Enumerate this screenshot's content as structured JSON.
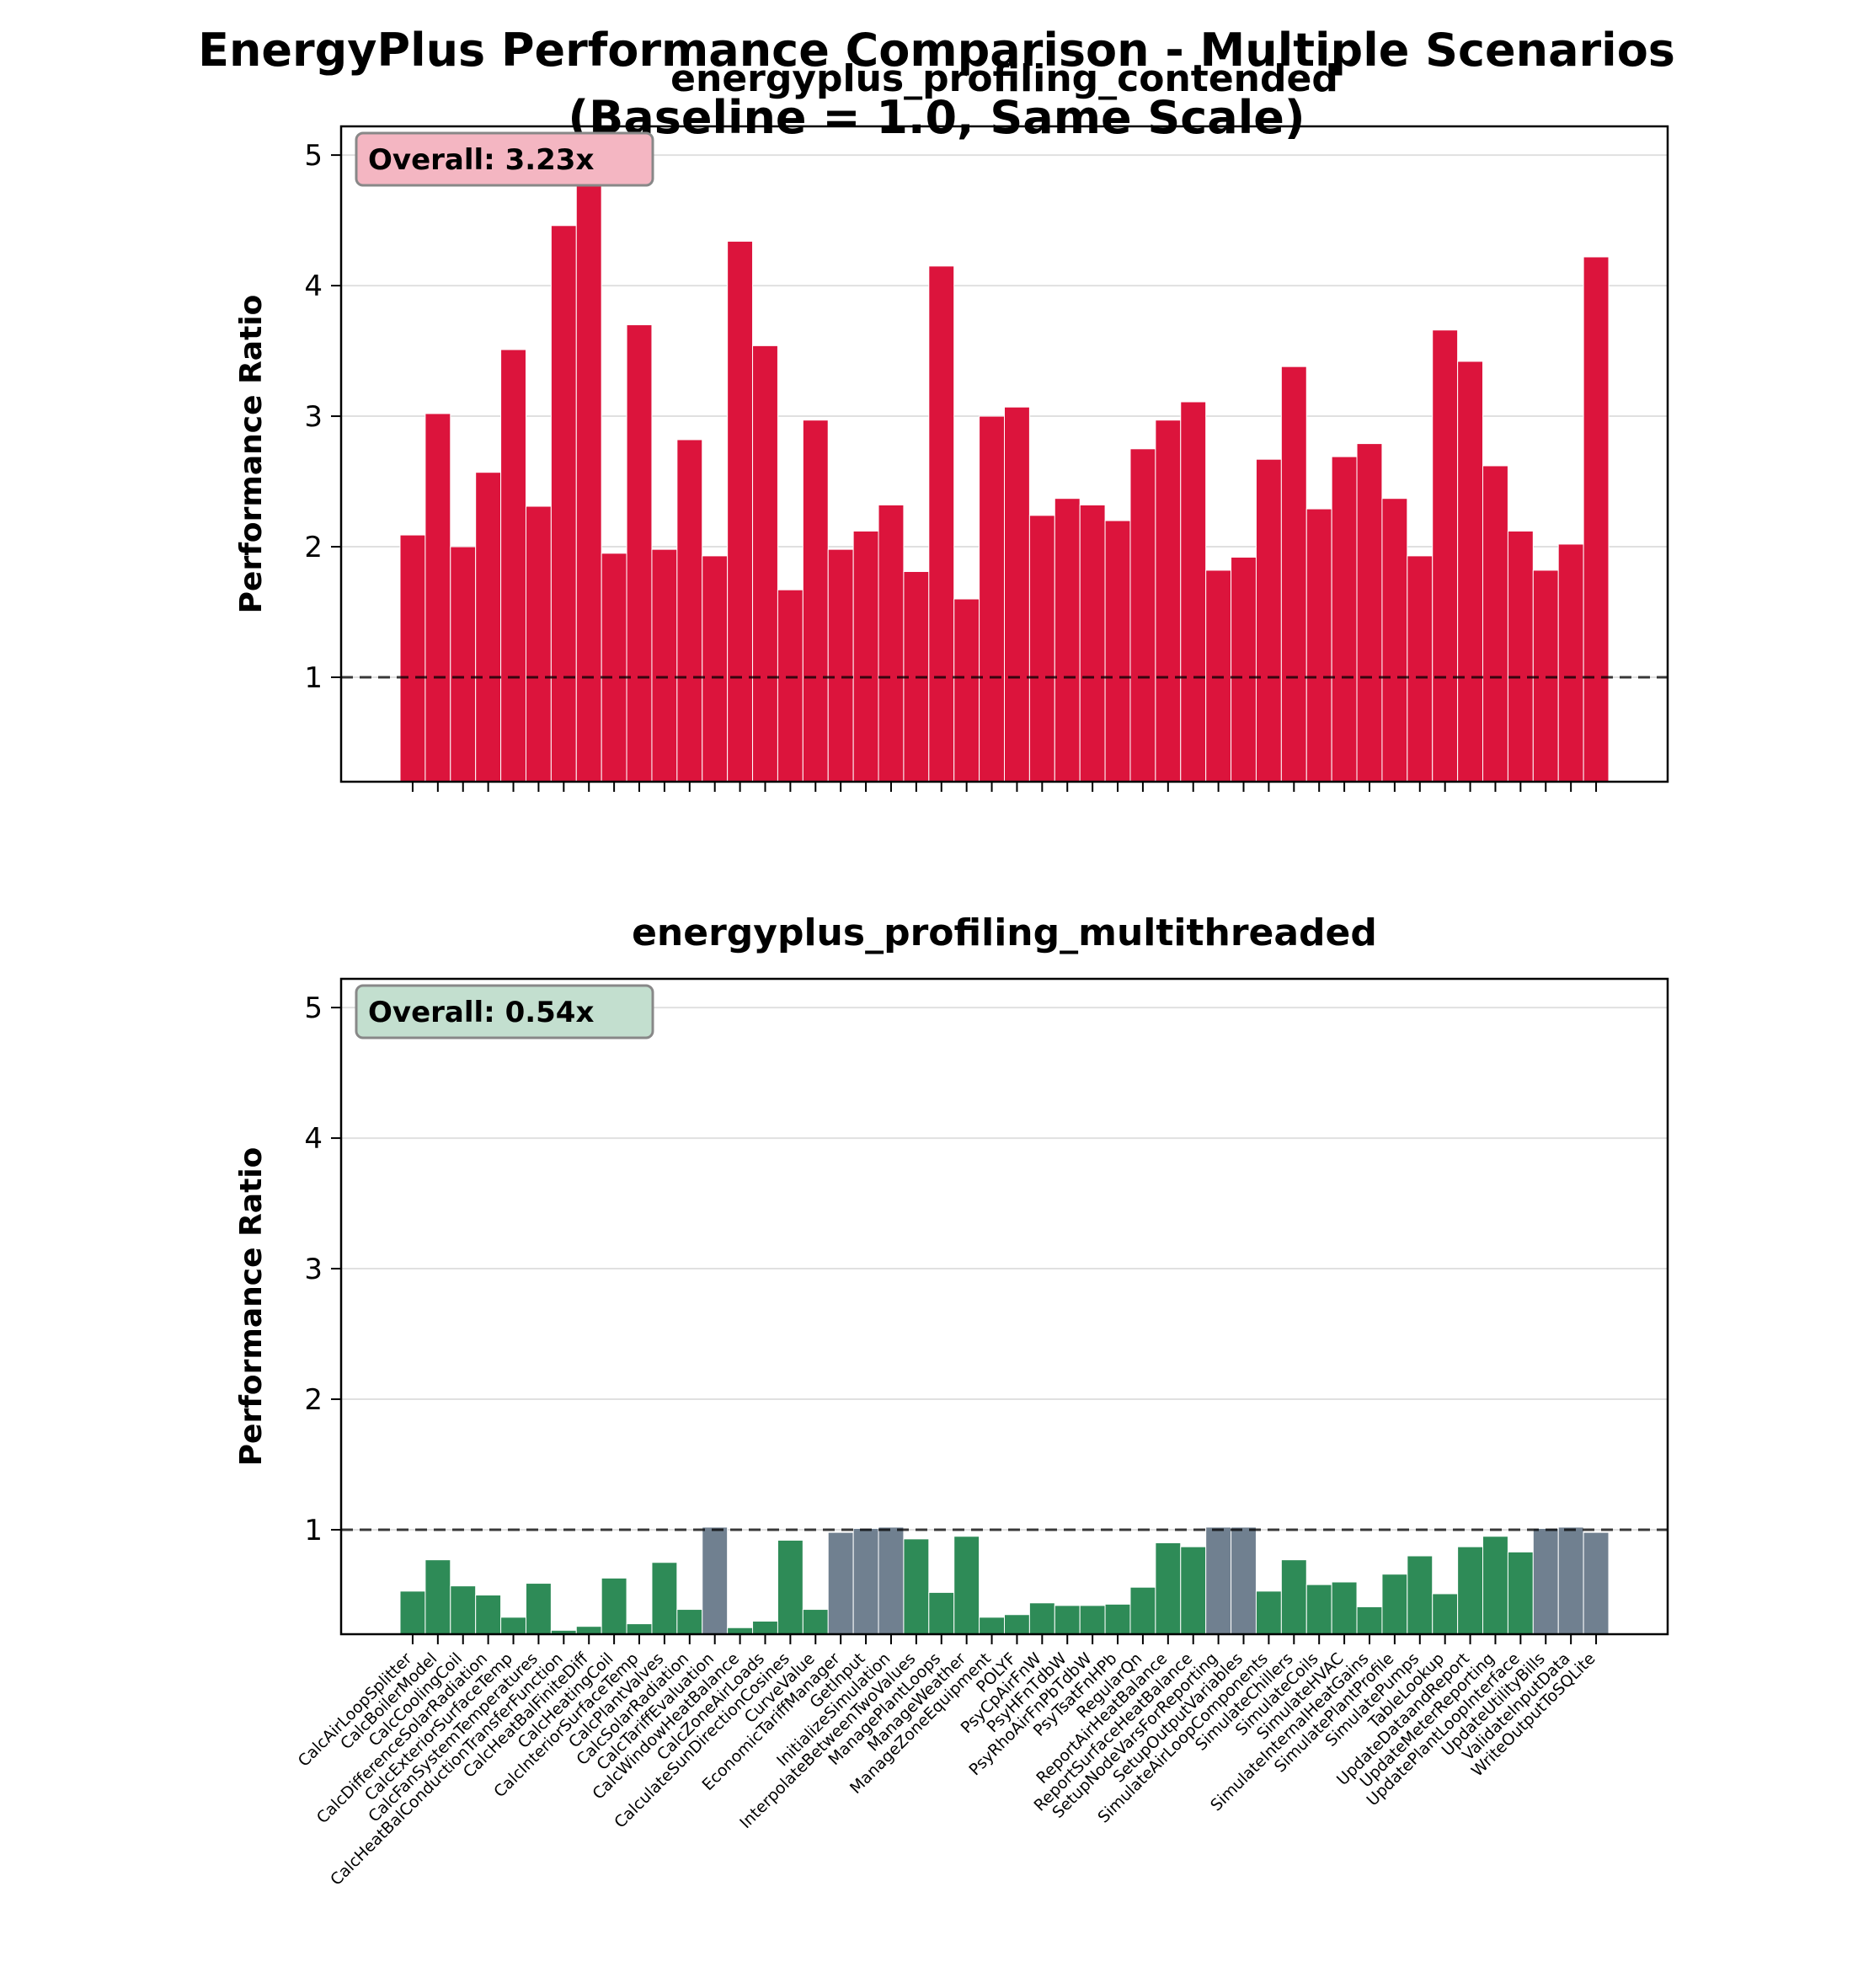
{
  "figure": {
    "title_line1": "EnergyPlus Performance Comparison - Multiple Scenarios",
    "title_line2": "(Baseline = 1.0, Same Scale)"
  },
  "colors": {
    "slower": "#dc143c",
    "faster": "#2e8b57",
    "neutral": "#708090",
    "badge_slower": "#f4b6c2",
    "badge_faster": "#c3dfcf"
  },
  "chart_data": [
    {
      "type": "bar",
      "title": "energyplus_profiling_contended",
      "ylabel": "Performance Ratio",
      "overall_label": "Overall: 3.23x",
      "baseline": 1.0,
      "ylim": [
        0.2,
        5.22
      ],
      "yticks": [
        1,
        2,
        3,
        4,
        5
      ],
      "grid": "y",
      "show_xticklabels": false,
      "categories": [
        "CalcAirLoopSplitter",
        "CalcBoilerModel",
        "CalcCoolingCoil",
        "CalcDifferenceSolarRadiation",
        "CalcExteriorSurfaceTemp",
        "CalcFanSystemTemperatures",
        "CalcHeatBalConductionTransferFunction",
        "CalcHeatBalFiniteDiff",
        "CalcHeatingCoil",
        "CalcInteriorSurfaceTemp",
        "CalcPlantValves",
        "CalcSolarRadiation",
        "CalcTariffEvaluation",
        "CalcWindowHeatBalance",
        "CalcZoneAirLoads",
        "CalculateSunDirectionCosines",
        "CurveValue",
        "EconomicTariffManager",
        "GetInput",
        "InitializeSimulation",
        "InterpolateBetweenTwoValues",
        "ManagePlantLoops",
        "ManageWeather",
        "ManageZoneEquipment",
        "POLYF",
        "PsyCpAirFnW",
        "PsyHFnTdbW",
        "PsyRhoAirFnPbTdbW",
        "PsyTsatFnHPb",
        "RegularQn",
        "ReportAirHeatBalance",
        "ReportSurfaceHeatBalance",
        "SetupNodeVarsForReporting",
        "SetupOutputVariables",
        "SimulateAirLoopComponents",
        "SimulateChillers",
        "SimulateCoils",
        "SimulateHVAC",
        "SimulateInternalHeatGains",
        "SimulatePlantProfile",
        "SimulatePumps",
        "TableLookup",
        "UpdateDataandReport",
        "UpdateMeterReporting",
        "UpdatePlantLoopInterface",
        "UpdateUtilityBills",
        "ValidateInputData",
        "WriteOutputToSQLite"
      ],
      "values": [
        2.09,
        3.02,
        2.0,
        2.57,
        3.51,
        2.31,
        4.46,
        4.95,
        1.95,
        3.7,
        1.98,
        2.82,
        1.93,
        4.34,
        3.54,
        1.67,
        2.97,
        1.98,
        2.12,
        2.32,
        1.81,
        4.15,
        1.6,
        3.0,
        3.07,
        2.24,
        2.37,
        2.32,
        2.2,
        2.75,
        2.97,
        3.11,
        1.82,
        1.92,
        2.67,
        3.38,
        2.29,
        2.69,
        2.79,
        2.37,
        1.93,
        3.66,
        3.42,
        2.62,
        2.12,
        1.82,
        2.02,
        4.22
      ]
    },
    {
      "type": "bar",
      "title": "energyplus_profiling_multithreaded",
      "ylabel": "Performance Ratio",
      "overall_label": "Overall: 0.54x",
      "baseline": 1.0,
      "ylim": [
        0.2,
        5.22
      ],
      "yticks": [
        1,
        2,
        3,
        4,
        5
      ],
      "grid": "y",
      "show_xticklabels": true,
      "categories": [
        "CalcAirLoopSplitter",
        "CalcBoilerModel",
        "CalcCoolingCoil",
        "CalcDifferenceSolarRadiation",
        "CalcExteriorSurfaceTemp",
        "CalcFanSystemTemperatures",
        "CalcHeatBalConductionTransferFunction",
        "CalcHeatBalFiniteDiff",
        "CalcHeatingCoil",
        "CalcInteriorSurfaceTemp",
        "CalcPlantValves",
        "CalcSolarRadiation",
        "CalcTariffEvaluation",
        "CalcWindowHeatBalance",
        "CalcZoneAirLoads",
        "CalculateSunDirectionCosines",
        "CurveValue",
        "EconomicTariffManager",
        "GetInput",
        "InitializeSimulation",
        "InterpolateBetweenTwoValues",
        "ManagePlantLoops",
        "ManageWeather",
        "ManageZoneEquipment",
        "POLYF",
        "PsyCpAirFnW",
        "PsyHFnTdbW",
        "PsyRhoAirFnPbTdbW",
        "PsyTsatFnHPb",
        "RegularQn",
        "ReportAirHeatBalance",
        "ReportSurfaceHeatBalance",
        "SetupNodeVarsForReporting",
        "SetupOutputVariables",
        "SimulateAirLoopComponents",
        "SimulateChillers",
        "SimulateCoils",
        "SimulateHVAC",
        "SimulateInternalHeatGains",
        "SimulatePlantProfile",
        "SimulatePumps",
        "TableLookup",
        "UpdateDataandReport",
        "UpdateMeterReporting",
        "UpdatePlantLoopInterface",
        "UpdateUtilityBills",
        "ValidateInputData",
        "WriteOutputToSQLite"
      ],
      "values": [
        0.53,
        0.77,
        0.57,
        0.5,
        0.33,
        0.59,
        0.23,
        0.26,
        0.63,
        0.28,
        0.75,
        0.39,
        1.02,
        0.25,
        0.3,
        0.92,
        0.39,
        0.98,
        1.01,
        1.02,
        0.93,
        0.52,
        0.95,
        0.33,
        0.35,
        0.44,
        0.42,
        0.42,
        0.43,
        0.56,
        0.9,
        0.87,
        1.02,
        1.02,
        0.53,
        0.77,
        0.58,
        0.6,
        0.41,
        0.66,
        0.8,
        0.51,
        0.87,
        0.95,
        0.83,
        1.01,
        1.02,
        0.98
      ]
    }
  ]
}
